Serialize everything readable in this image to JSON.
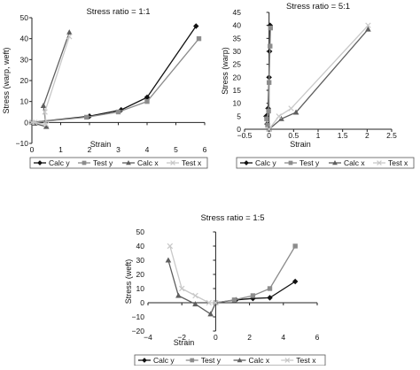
{
  "chart_data": [
    {
      "id": "p1",
      "type": "line",
      "title": "Stress ratio = 1:1",
      "xlabel": "Strain",
      "ylabel": "Stress (warp, weft)",
      "xlim": [
        0,
        6
      ],
      "ylim": [
        -10,
        50
      ],
      "xticks": [
        "0",
        "1",
        "2",
        "3",
        "4",
        "5",
        "6"
      ],
      "yticks": [
        "−10",
        "0",
        "10",
        "20",
        "30",
        "40",
        "50"
      ],
      "xtick_values": [
        0,
        1,
        2,
        3,
        4,
        5,
        6
      ],
      "ytick_values": [
        -10,
        0,
        10,
        20,
        30,
        40,
        50
      ],
      "grid": false,
      "legend_position": "bottom",
      "series": [
        {
          "name": "Calc y",
          "color": "#111111",
          "marker": "diamond",
          "dash": "",
          "x": [
            0,
            2,
            3.1,
            4,
            5.7
          ],
          "y": [
            0,
            3,
            6,
            12,
            46
          ]
        },
        {
          "name": "Test y",
          "color": "#8c8c8c",
          "marker": "square",
          "dash": "",
          "x": [
            0,
            1.9,
            3,
            4,
            5.8
          ],
          "y": [
            0,
            2.5,
            5,
            10,
            40
          ]
        },
        {
          "name": "Calc x",
          "color": "#5e5e5e",
          "marker": "triangle",
          "dash": "",
          "x": [
            0,
            0.1,
            0.5,
            0.4,
            1.3
          ],
          "y": [
            0,
            -0.5,
            -2,
            8,
            43
          ]
        },
        {
          "name": "Test x",
          "color": "#c8c8c8",
          "marker": "x",
          "dash": "",
          "x": [
            0,
            0.1,
            0.5,
            0.45,
            1.3
          ],
          "y": [
            0,
            0,
            -1,
            5,
            41
          ]
        }
      ]
    },
    {
      "id": "p2",
      "type": "line",
      "title": "Stress ratio = 5:1",
      "xlabel": "Strain",
      "ylabel": "Stress (warp)",
      "xlim": [
        -0.5,
        2.5
      ],
      "ylim": [
        0,
        45
      ],
      "xticks": [
        "−0.5",
        "0",
        "0.5",
        "1",
        "1.5",
        "2",
        "2.5"
      ],
      "yticks": [
        "0",
        "5",
        "10",
        "15",
        "20",
        "25",
        "30",
        "35",
        "40",
        "45"
      ],
      "xtick_values": [
        -0.5,
        0,
        0.5,
        1,
        1.5,
        2,
        2.5
      ],
      "ytick_values": [
        0,
        5,
        10,
        15,
        20,
        25,
        30,
        35,
        40,
        45
      ],
      "grid": false,
      "legend_position": "bottom",
      "series": [
        {
          "name": "Calc y",
          "color": "#111111",
          "marker": "diamond",
          "dash": "",
          "x": [
            0,
            -0.04,
            -0.06,
            -0.02,
            0,
            0.01,
            0.02
          ],
          "y": [
            0,
            2,
            5,
            8,
            20,
            30,
            40
          ]
        },
        {
          "name": "Test y",
          "color": "#8c8c8c",
          "marker": "square",
          "dash": "",
          "x": [
            0,
            -0.03,
            -0.05,
            -0.01,
            0,
            0.02,
            0.03
          ],
          "y": [
            0,
            1.5,
            4,
            7,
            18,
            32,
            39
          ]
        },
        {
          "name": "Calc x",
          "color": "#5e5e5e",
          "marker": "triangle",
          "dash": "",
          "x": [
            0,
            0.25,
            0.55,
            2.02
          ],
          "y": [
            0,
            4,
            6.5,
            38.5
          ]
        },
        {
          "name": "Test x",
          "color": "#c8c8c8",
          "marker": "x",
          "dash": "",
          "x": [
            0,
            0.2,
            0.45,
            2.02
          ],
          "y": [
            0,
            5,
            8,
            40
          ]
        }
      ]
    },
    {
      "id": "p3",
      "type": "line",
      "title": "Stress ratio = 1:5",
      "xlabel": "Strain",
      "ylabel": "Stress (weft)",
      "xlim": [
        -4,
        6
      ],
      "ylim": [
        -20,
        50
      ],
      "xticks": [
        "−4",
        "−2",
        "0",
        "2",
        "4",
        "6"
      ],
      "yticks": [
        "−20",
        "−10",
        "0",
        "10",
        "20",
        "30",
        "40",
        "50"
      ],
      "xtick_values": [
        -4,
        -2,
        0,
        2,
        4,
        6
      ],
      "ytick_values": [
        -20,
        -10,
        0,
        10,
        20,
        30,
        40,
        50
      ],
      "grid": false,
      "legend_position": "bottom",
      "series": [
        {
          "name": "Calc y",
          "color": "#111111",
          "marker": "diamond",
          "dash": "",
          "x": [
            0,
            1.2,
            2.2,
            3.2,
            4.7
          ],
          "y": [
            0,
            2,
            3,
            3.5,
            15
          ]
        },
        {
          "name": "Test y",
          "color": "#8c8c8c",
          "marker": "square",
          "dash": "",
          "x": [
            0,
            1.1,
            2.2,
            3.2,
            4.7
          ],
          "y": [
            0,
            2,
            5,
            10,
            40
          ]
        },
        {
          "name": "Calc x",
          "color": "#5e5e5e",
          "marker": "triangle",
          "dash": "",
          "x": [
            -2.8,
            -2.2,
            -1.2,
            -0.3,
            0
          ],
          "y": [
            30,
            5,
            -1,
            -8,
            0
          ]
        },
        {
          "name": "Test x",
          "color": "#c8c8c8",
          "marker": "x",
          "dash": "",
          "x": [
            -2.7,
            -2,
            -1.2,
            -0.4,
            0
          ],
          "y": [
            40,
            10,
            5,
            0,
            0
          ]
        }
      ]
    }
  ]
}
